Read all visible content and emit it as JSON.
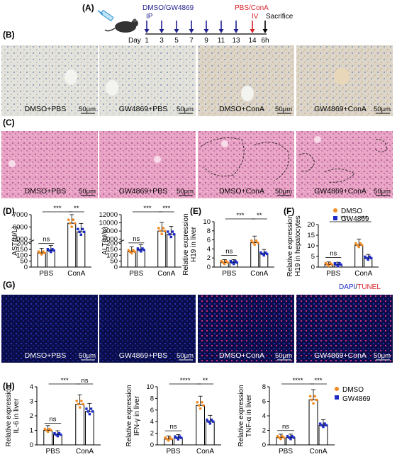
{
  "panel_labels": {
    "a": "(A)",
    "b": "(B)",
    "c": "(C)",
    "d": "(D)",
    "e": "(E)",
    "f": "(F)",
    "g": "(G)",
    "h": "(H)"
  },
  "timeline": {
    "treatment_label": "DMSO/GW4869",
    "route_ip": "IP",
    "challenge_label": "PBS/ConA",
    "route_iv": "IV",
    "sacrifice": "Sacrifice",
    "day_label": "Day",
    "days": [
      "1",
      "3",
      "5",
      "7",
      "9",
      "11",
      "13",
      "14",
      "6h"
    ],
    "colors": {
      "treatment": "#1f1f8f",
      "challenge": "#d8232a"
    }
  },
  "image_rows": {
    "ihc": {
      "captions": [
        "DMSO+PBS",
        "GW4869+PBS",
        "DMSO+ConA",
        "GW4869+ConA"
      ],
      "scale": "50μm"
    },
    "he": {
      "captions": [
        "DMSO+PBS",
        "GW4869+PBS",
        "DMSO+ConA",
        "GW4869+ConA"
      ],
      "scale": "50μm"
    },
    "tunel": {
      "captions": [
        "DMSO+PBS",
        "GW4869+PBS",
        "DMSO+ConA",
        "GW4869+ConA"
      ],
      "scale": "50μm",
      "stain_dapi": "DAPI",
      "stain_sep": "/",
      "stain_tunel": "TUNEL"
    }
  },
  "legend": {
    "dmso": "DMSO",
    "gw": "GW4869",
    "dmso_color": "#f08a24",
    "gw_color": "#1d2cc4"
  },
  "chart_data": [
    {
      "id": "D1",
      "type": "bar",
      "ylabel": "AST(U/L)",
      "categories": [
        "PBS",
        "ConA"
      ],
      "yticks": [
        "0",
        "50",
        "100",
        "150",
        "200",
        "5000",
        "6000",
        "7000"
      ],
      "series": [
        {
          "name": "DMSO",
          "values": [
            120,
            6300
          ]
        },
        {
          "name": "GW4869",
          "values": [
            140,
            5600
          ]
        }
      ],
      "sig": [
        "ns",
        "***",
        "**"
      ]
    },
    {
      "id": "D2",
      "type": "bar",
      "ylabel": "ALT(U/L)",
      "categories": [
        "PBS",
        "ConA"
      ],
      "yticks": [
        "0",
        "50",
        "100",
        "150",
        "200",
        "6000",
        "8000",
        "10000",
        "12000"
      ],
      "series": [
        {
          "name": "DMSO",
          "values": [
            130,
            8000
          ]
        },
        {
          "name": "GW4869",
          "values": [
            145,
            7200
          ]
        }
      ],
      "sig": [
        "ns",
        "***",
        "***"
      ]
    },
    {
      "id": "E",
      "type": "bar",
      "ylabel": "Relative expression\nH19 in liver",
      "categories": [
        "PBS",
        "ConA"
      ],
      "yticks": [
        "0",
        "2",
        "4",
        "6",
        "8",
        "10"
      ],
      "ylim": [
        0,
        10
      ],
      "series": [
        {
          "name": "DMSO",
          "values": [
            1.0,
            5.4
          ]
        },
        {
          "name": "GW4869",
          "values": [
            1.0,
            2.9
          ]
        }
      ],
      "sig": [
        "ns",
        "***",
        "**"
      ]
    },
    {
      "id": "F",
      "type": "bar",
      "ylabel": "Relative expression\nH19 in hepatocytes",
      "categories": [
        "PBS",
        "ConA"
      ],
      "yticks": [
        "0",
        "5",
        "10",
        "15",
        "20"
      ],
      "ylim": [
        0,
        20
      ],
      "series": [
        {
          "name": "DMSO",
          "values": [
            1.2,
            10.3
          ]
        },
        {
          "name": "GW4869",
          "values": [
            1.1,
            4.2
          ]
        }
      ],
      "sig": [
        "ns",
        "***",
        "***"
      ]
    },
    {
      "id": "H1",
      "type": "bar",
      "ylabel": "Relative expression\nIL-6 in liver",
      "categories": [
        "PBS",
        "ConA"
      ],
      "yticks": [
        "0",
        "1",
        "2",
        "3",
        "4"
      ],
      "ylim": [
        0,
        4
      ],
      "series": [
        {
          "name": "DMSO",
          "values": [
            1.0,
            2.8
          ]
        },
        {
          "name": "GW4869",
          "values": [
            0.7,
            2.3
          ]
        }
      ],
      "sig": [
        "ns",
        "***",
        "ns"
      ]
    },
    {
      "id": "H2",
      "type": "bar",
      "ylabel": "Relative expression\nIFN-γ in liver",
      "categories": [
        "PBS",
        "ConA"
      ],
      "yticks": [
        "0",
        "2",
        "4",
        "6",
        "8",
        "10"
      ],
      "ylim": [
        0,
        10
      ],
      "series": [
        {
          "name": "DMSO",
          "values": [
            1.0,
            6.8
          ]
        },
        {
          "name": "GW4869",
          "values": [
            1.2,
            4.0
          ]
        }
      ],
      "sig": [
        "ns",
        "****",
        "**"
      ]
    },
    {
      "id": "H3",
      "type": "bar",
      "ylabel": "Relative expression\nTNF-α in liver",
      "categories": [
        "PBS",
        "ConA"
      ],
      "yticks": [
        "0",
        "2",
        "4",
        "6",
        "8"
      ],
      "ylim": [
        0,
        8
      ],
      "series": [
        {
          "name": "DMSO",
          "values": [
            1.0,
            6.2
          ]
        },
        {
          "name": "GW4869",
          "values": [
            1.0,
            2.7
          ]
        }
      ],
      "sig": [
        "ns",
        "****",
        "***"
      ]
    }
  ]
}
